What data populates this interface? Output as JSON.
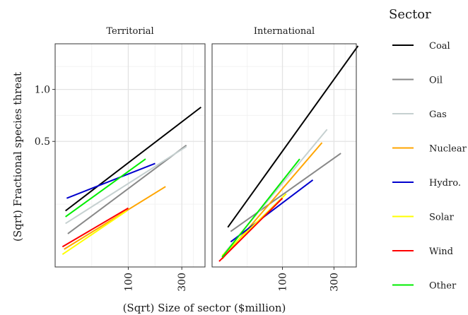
{
  "chart_data": {
    "type": "line",
    "xlabel": "(Sqrt) Size of sector ($million)",
    "ylabel": "(Sqrt) Fractional species threat",
    "x_scale": "sqrt",
    "y_scale": "sqrt",
    "xlim": [
      0,
      420
    ],
    "ylim": [
      0,
      1.58
    ],
    "x_ticks": [
      100,
      300
    ],
    "y_ticks": [
      0.5,
      1.0
    ],
    "y_tick_labels": [
      "0.5",
      "1.0"
    ],
    "grid": true,
    "legend": {
      "title": "Sector",
      "position": "right"
    },
    "panels": [
      {
        "title": "Territorial",
        "series": [
          {
            "name": "Coal",
            "color": "#000000",
            "x": [
              2,
              398
            ],
            "y": [
              0.1,
              0.81
            ]
          },
          {
            "name": "Oil",
            "color": "#888888",
            "x": [
              3,
              322
            ],
            "y": [
              0.035,
              0.47
            ]
          },
          {
            "name": "Gas",
            "color": "#c5d0d0",
            "x": [
              2,
              322
            ],
            "y": [
              0.06,
              0.46
            ]
          },
          {
            "name": "Nuclear",
            "color": "#ffa500",
            "x": [
              1.5,
              228
            ],
            "y": [
              0.01,
              0.205
            ]
          },
          {
            "name": "Hydro.",
            "color": "#0000cd",
            "x": [
              2.5,
              187
            ],
            "y": [
              0.15,
              0.34
            ]
          },
          {
            "name": "Solar",
            "color": "#ffff00",
            "x": [
              1,
              96
            ],
            "y": [
              0.005,
              0.1
            ]
          },
          {
            "name": "Wind",
            "color": "#ff0000",
            "x": [
              1,
              100
            ],
            "y": [
              0.013,
              0.11
            ]
          },
          {
            "name": "Other",
            "color": "#00ee00",
            "x": [
              2,
              153
            ],
            "y": [
              0.08,
              0.37
            ]
          }
        ]
      },
      {
        "title": "International",
        "series": [
          {
            "name": "Coal",
            "color": "#000000",
            "x": [
              5,
              430
            ],
            "y": [
              0.05,
              1.55
            ]
          },
          {
            "name": "Oil",
            "color": "#888888",
            "x": [
              7,
              335
            ],
            "y": [
              0.04,
              0.41
            ]
          },
          {
            "name": "Gas",
            "color": "#c5d0d0",
            "x": [
              3,
              267
            ],
            "y": [
              0.006,
              0.6
            ]
          },
          {
            "name": "Nuclear",
            "color": "#ffa500",
            "x": [
              2,
              244
            ],
            "y": [
              0.002,
              0.49
            ]
          },
          {
            "name": "Hydro.",
            "color": "#0000cd",
            "x": [
              7,
              205
            ],
            "y": [
              0.02,
              0.24
            ]
          },
          {
            "name": "Solar",
            "color": "#ffff00",
            "x": [
              2,
              111
            ],
            "y": [
              0.004,
              0.17
            ]
          },
          {
            "name": "Wind",
            "color": "#ff0000",
            "x": [
              1,
              100
            ],
            "y": [
              0.001,
              0.15
            ]
          },
          {
            "name": "Other",
            "color": "#00ee00",
            "x": [
              2,
              155
            ],
            "y": [
              0.003,
              0.37
            ]
          }
        ]
      }
    ]
  }
}
